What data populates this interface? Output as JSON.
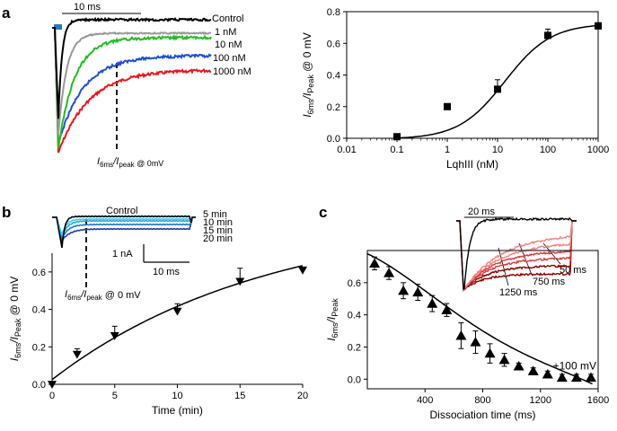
{
  "panels": {
    "a": {
      "letter": "a"
    },
    "b": {
      "letter": "b"
    },
    "c": {
      "letter": "c"
    }
  },
  "colors": {
    "control": "#000000",
    "c1nM": "#999999",
    "c10nM": "#22bb22",
    "c100nM": "#1f4fd0",
    "c1000nM": "#e8171c",
    "b5min": "#41c8ee",
    "b10min": "#29a7d6",
    "b15min": "#1f78c4",
    "b20min": "#1f3d9c",
    "c_dark": "#8b0000",
    "c_mid": "#d43a3a",
    "c_light": "#f08080"
  },
  "inset_a": {
    "scale_label": "10 ms",
    "legend": [
      "Control",
      "1 nM",
      "10 nM",
      "100 nM",
      "1000 nM"
    ],
    "annot_main": "I",
    "annot_sub1": "6ms",
    "annot_mid": "/I",
    "annot_sub2": "peak",
    "annot_tail": " @ 0mV"
  },
  "inset_b": {
    "control_label": "Control",
    "legend": [
      "5 min",
      "10 min",
      "15 min",
      "20 min"
    ],
    "scale_y": "1 nA",
    "scale_x": "10 ms",
    "annot_main": "I",
    "annot_sub1": "6ms",
    "annot_mid": "/I",
    "annot_sub2": "peak",
    "annot_tail": " @ 0 mV"
  },
  "inset_c": {
    "scale_label": "20 ms",
    "labels": [
      "50 ms",
      "750 ms",
      "1250 ms"
    ]
  },
  "chart_data": [
    {
      "id": "a_dose_response",
      "type": "scatter",
      "xscale": "log",
      "xlabel": "LqhIII (nM)",
      "ylabel_main": "I",
      "ylabel_sub1": "6ms",
      "ylabel_mid": "/I",
      "ylabel_sub2": "Peak",
      "ylabel_tail": " @ 0 mV",
      "xlim": [
        0.01,
        1000
      ],
      "ylim": [
        0,
        0.8
      ],
      "xticks": [
        0.01,
        0.1,
        1,
        10,
        100,
        1000
      ],
      "xtick_labels": [
        "0.01",
        "0.1",
        "1",
        "10",
        "100",
        "1000"
      ],
      "yticks": [
        0.0,
        0.2,
        0.4,
        0.6,
        0.8
      ],
      "ytick_labels": [
        "0.0",
        "0.2",
        "0.4",
        "0.6",
        "0.8"
      ],
      "x": [
        0.1,
        1,
        10,
        100,
        1000
      ],
      "y": [
        0.01,
        0.2,
        0.31,
        0.65,
        0.71
      ],
      "yerr": [
        0.01,
        0.015,
        0.06,
        0.04,
        0.02
      ],
      "fit": {
        "model": "hill",
        "bottom": -0.005,
        "top": 0.725,
        "ec50": 14,
        "n": 0.95
      }
    },
    {
      "id": "b_time_course",
      "type": "scatter",
      "xlabel": "Time (min)",
      "ylabel_main": "I",
      "ylabel_sub1": "6ms",
      "ylabel_mid": "/I",
      "ylabel_sub2": "Peak",
      "ylabel_tail": " @ 0 mV",
      "xlim": [
        0,
        20
      ],
      "ylim": [
        0,
        0.7
      ],
      "xticks": [
        0,
        5,
        10,
        15,
        20
      ],
      "xtick_labels": [
        "0",
        "5",
        "10",
        "15",
        "20"
      ],
      "yticks": [
        0.0,
        0.2,
        0.4,
        0.6
      ],
      "ytick_labels": [
        "0.0",
        "0.2",
        "0.4",
        "0.6"
      ],
      "x": [
        0,
        2,
        5,
        10,
        15,
        20
      ],
      "y": [
        0.0,
        0.16,
        0.26,
        0.39,
        0.55,
        0.61
      ],
      "yerr": [
        0.0,
        0.03,
        0.05,
        0.04,
        0.07,
        0.0
      ],
      "fit": {
        "model": "exp_rise",
        "y0": 0.025,
        "amp": 0.88,
        "tau": 17
      }
    },
    {
      "id": "c_dissociation",
      "type": "scatter",
      "xlabel": "Dissociation time (ms)",
      "ylabel_main": "I",
      "ylabel_sub1": "6ms",
      "ylabel_mid": "/I",
      "ylabel_sub2": "Peak",
      "ylabel_tail": "",
      "xlim": [
        0,
        1600
      ],
      "ylim": [
        -0.06,
        0.8
      ],
      "xticks": [
        400,
        800,
        1200,
        1600
      ],
      "xtick_labels": [
        "400",
        "800",
        "1200",
        "1600"
      ],
      "yticks": [
        0.0,
        0.2,
        0.4,
        0.6
      ],
      "ytick_labels": [
        "0.0",
        "0.2",
        "0.4",
        "0.6"
      ],
      "annotation": "+100 mV",
      "x": [
        50,
        150,
        250,
        350,
        450,
        550,
        650,
        750,
        850,
        950,
        1050,
        1150,
        1250,
        1350,
        1450,
        1550
      ],
      "y": [
        0.72,
        0.66,
        0.55,
        0.54,
        0.47,
        0.43,
        0.27,
        0.23,
        0.16,
        0.12,
        0.08,
        0.05,
        0.03,
        0.01,
        0.01,
        0.01
      ],
      "yerr": [
        0.04,
        0.04,
        0.05,
        0.05,
        0.05,
        0.04,
        0.08,
        0.07,
        0.06,
        0.04,
        0.02,
        0.02,
        0.02,
        0.02,
        0.02,
        0.02
      ],
      "fit": {
        "model": "poly",
        "points": [
          [
            0,
            0.78
          ],
          [
            400,
            0.55
          ],
          [
            800,
            0.3
          ],
          [
            1200,
            0.11
          ],
          [
            1560,
            -0.03
          ]
        ]
      }
    }
  ]
}
